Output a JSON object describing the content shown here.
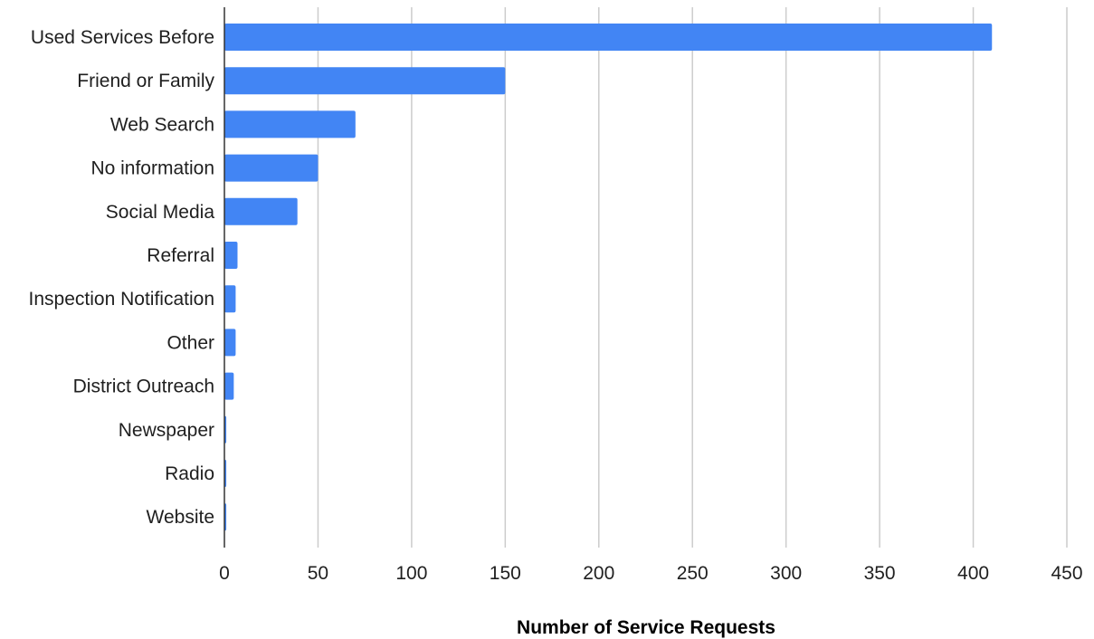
{
  "chart_data": {
    "type": "bar",
    "orientation": "horizontal",
    "title": "",
    "xlabel": "Number of Service Requests",
    "ylabel": "",
    "categories": [
      "Used Services Before",
      "Friend or Family",
      "Web Search",
      "No information",
      "Social Media",
      "Referral",
      "Inspection Notification",
      "Other",
      "District Outreach",
      "Newspaper",
      "Radio",
      "Website"
    ],
    "values": [
      410,
      150,
      70,
      50,
      39,
      7,
      6,
      6,
      5,
      1,
      1,
      1
    ],
    "xlim": [
      0,
      450
    ],
    "xticks": [
      0,
      50,
      100,
      150,
      200,
      250,
      300,
      350,
      400,
      450
    ],
    "grid": "vertical",
    "legend": "none",
    "bar_color": "#4285f4",
    "grid_color": "#cccccc",
    "axis_color": "#333333"
  }
}
